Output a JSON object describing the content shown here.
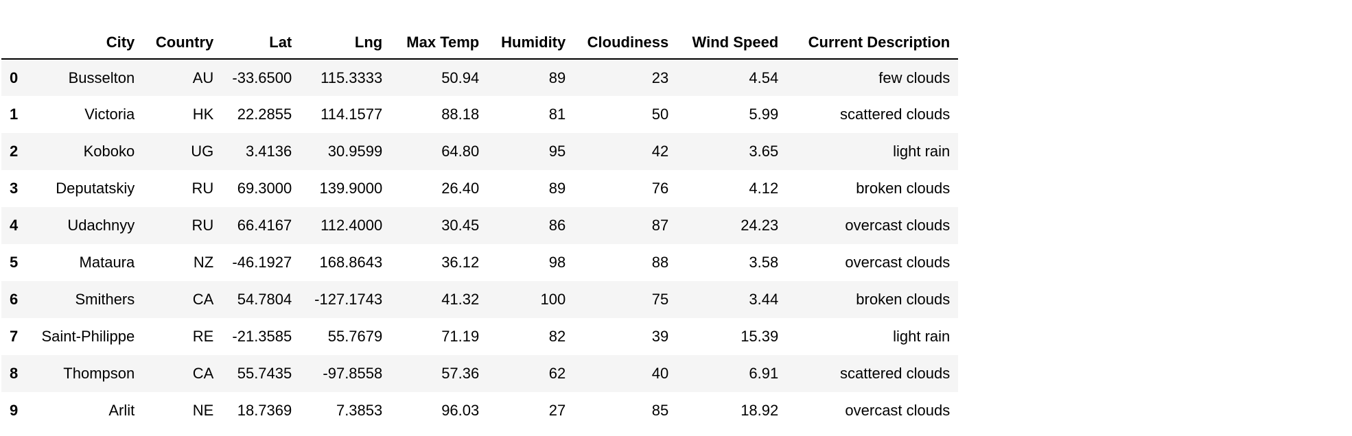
{
  "table": {
    "columns": [
      "",
      "City",
      "Country",
      "Lat",
      "Lng",
      "Max Temp",
      "Humidity",
      "Cloudiness",
      "Wind Speed",
      "Current Description"
    ],
    "rows": [
      [
        "0",
        "Busselton",
        "AU",
        "-33.6500",
        "115.3333",
        "50.94",
        "89",
        "23",
        "4.54",
        "few clouds"
      ],
      [
        "1",
        "Victoria",
        "HK",
        "22.2855",
        "114.1577",
        "88.18",
        "81",
        "50",
        "5.99",
        "scattered clouds"
      ],
      [
        "2",
        "Koboko",
        "UG",
        "3.4136",
        "30.9599",
        "64.80",
        "95",
        "42",
        "3.65",
        "light rain"
      ],
      [
        "3",
        "Deputatskiy",
        "RU",
        "69.3000",
        "139.9000",
        "26.40",
        "89",
        "76",
        "4.12",
        "broken clouds"
      ],
      [
        "4",
        "Udachnyy",
        "RU",
        "66.4167",
        "112.4000",
        "30.45",
        "86",
        "87",
        "24.23",
        "overcast clouds"
      ],
      [
        "5",
        "Mataura",
        "NZ",
        "-46.1927",
        "168.8643",
        "36.12",
        "98",
        "88",
        "3.58",
        "overcast clouds"
      ],
      [
        "6",
        "Smithers",
        "CA",
        "54.7804",
        "-127.1743",
        "41.32",
        "100",
        "75",
        "3.44",
        "broken clouds"
      ],
      [
        "7",
        "Saint-Philippe",
        "RE",
        "-21.3585",
        "55.7679",
        "71.19",
        "82",
        "39",
        "15.39",
        "light rain"
      ],
      [
        "8",
        "Thompson",
        "CA",
        "55.7435",
        "-97.8558",
        "57.36",
        "62",
        "40",
        "6.91",
        "scattered clouds"
      ],
      [
        "9",
        "Arlit",
        "NE",
        "18.7369",
        "7.3853",
        "96.03",
        "27",
        "85",
        "18.92",
        "overcast clouds"
      ]
    ]
  }
}
